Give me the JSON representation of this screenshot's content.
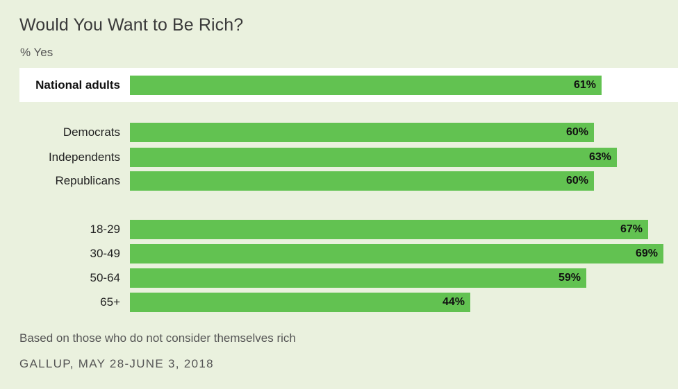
{
  "chart_data": {
    "type": "bar",
    "orientation": "horizontal",
    "title": "Would You Want to Be Rich?",
    "subtitle": "% Yes",
    "categories": [
      "National adults",
      "Democrats",
      "Independents",
      "Republicans",
      "18-29",
      "30-49",
      "50-64",
      "65+"
    ],
    "values": [
      61,
      60,
      63,
      60,
      67,
      69,
      59,
      44
    ],
    "value_labels": [
      "61%",
      "60%",
      "63%",
      "60%",
      "67%",
      "69%",
      "59%",
      "44%"
    ],
    "highlighted_category": "National adults",
    "xlim": [
      0,
      69
    ],
    "grid": false,
    "bar_color": "#62c251",
    "highlight_band_color": "#ffffff",
    "background_color": "#eaf1de"
  },
  "footer": {
    "note": "Based on those who do not consider themselves rich",
    "source": "GALLUP, MAY 28-JUNE 3, 2018"
  }
}
